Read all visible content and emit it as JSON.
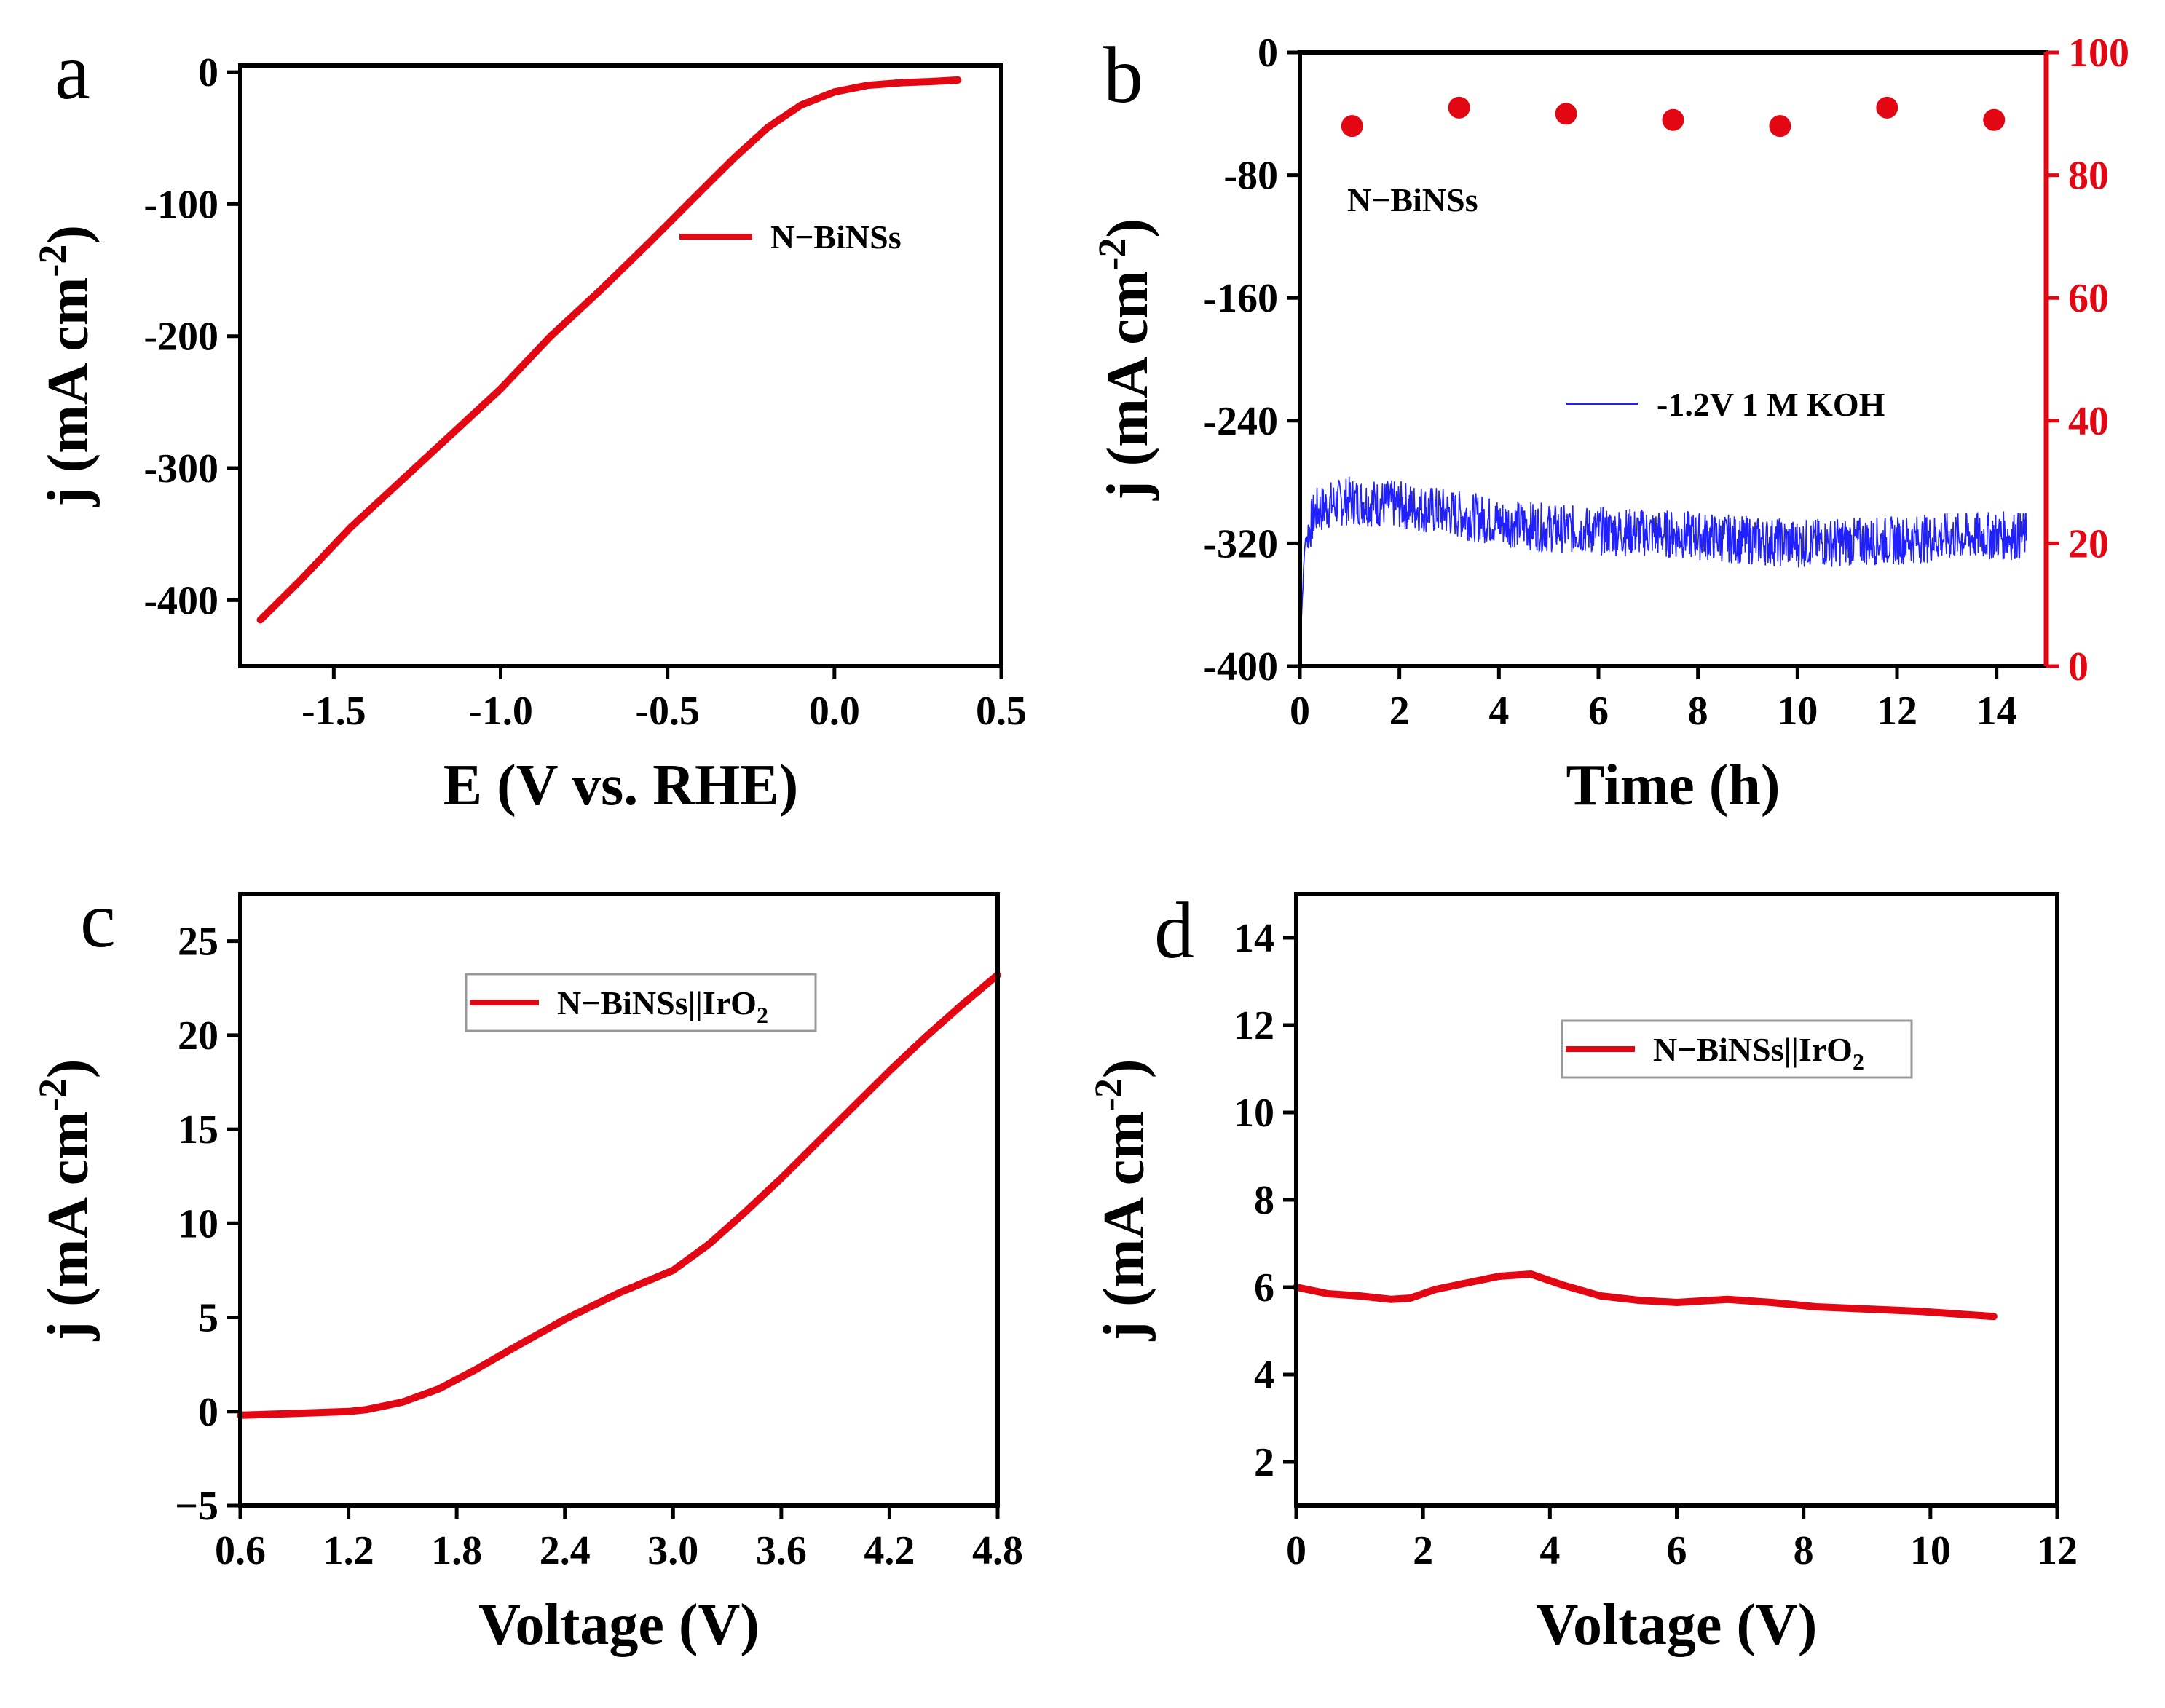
{
  "colors": {
    "red": "#e30613",
    "blue": "#1f1fff",
    "axis": "#000000"
  },
  "chart_data": [
    {
      "id": "a",
      "type": "line",
      "panel_label": "a",
      "xlabel": "E (V vs. RHE)",
      "ylabel": {
        "main": "j (mA cm",
        "sup": "-2",
        "close": ")"
      },
      "xlim": [
        -1.78,
        0.5
      ],
      "ylim": [
        -450,
        5
      ],
      "xticks": [
        -1.5,
        -1.0,
        -0.5,
        0.0,
        0.5
      ],
      "xtick_labels": [
        "-1.5",
        "-1.0",
        "-0.5",
        "0.0",
        "0.5"
      ],
      "yticks": [
        0,
        -100,
        -200,
        -300,
        -400
      ],
      "ytick_labels": [
        "0",
        "-100",
        "-200",
        "-300",
        "-400"
      ],
      "legend": {
        "label": "N−BiNSs",
        "position": "upper-right"
      },
      "series": [
        {
          "name": "N−BiNSs",
          "color": "#e30613",
          "x": [
            -1.72,
            -1.6,
            -1.45,
            -1.3,
            -1.15,
            -1.0,
            -0.85,
            -0.7,
            -0.55,
            -0.4,
            -0.3,
            -0.2,
            -0.1,
            0.0,
            0.1,
            0.2,
            0.3,
            0.37
          ],
          "y": [
            -415,
            -385,
            -345,
            -310,
            -275,
            -240,
            -200,
            -165,
            -128,
            -90,
            -65,
            -42,
            -25,
            -15,
            -10,
            -8,
            -7,
            -6
          ]
        }
      ]
    },
    {
      "id": "b",
      "type": "line",
      "panel_label": "b",
      "xlabel": "Time (h)",
      "ylabel": {
        "main": "j (mA cm",
        "sup": "-2",
        "close": ")"
      },
      "xlim": [
        0,
        15
      ],
      "ylim": [
        -400,
        0
      ],
      "xticks": [
        0,
        2,
        4,
        6,
        8,
        10,
        12,
        14
      ],
      "xtick_labels": [
        "0",
        "2",
        "4",
        "6",
        "8",
        "10",
        "12",
        "14"
      ],
      "yticks": [
        0,
        -80,
        -160,
        -240,
        -320,
        -400
      ],
      "ytick_labels": [
        "0",
        "-80",
        "-160",
        "-240",
        "-320",
        "-400"
      ],
      "y2lim": [
        0,
        100
      ],
      "y2ticks": [
        0,
        20,
        40,
        60,
        80,
        100
      ],
      "y2tick_labels": [
        "0",
        "20",
        "40",
        "60",
        "80",
        "100"
      ],
      "annotation": "N−BiNSs",
      "legend": {
        "label": "-1.2V 1 M KOH",
        "position": "center-right"
      },
      "series": [
        {
          "name": "-1.2V 1 M KOH",
          "color": "#1f1fff",
          "x": [
            0,
            0.1,
            0.3,
            0.6,
            1,
            2,
            3,
            4,
            5,
            6,
            7,
            8,
            9,
            10,
            11,
            12,
            13,
            14,
            14.6
          ],
          "y": [
            -390,
            -320,
            -300,
            -295,
            -292,
            -295,
            -300,
            -306,
            -310,
            -312,
            -313,
            -315,
            -318,
            -320,
            -319,
            -318,
            -316,
            -315,
            -315
          ],
          "noise_amplitude": 16
        },
        {
          "type": "scatter",
          "axis": "right",
          "color": "#e30613",
          "x": [
            1.05,
            3.2,
            5.35,
            7.5,
            9.65,
            11.8,
            13.95
          ],
          "y": [
            88,
            91,
            90,
            89,
            88,
            91,
            89
          ]
        }
      ]
    },
    {
      "id": "c",
      "type": "line",
      "panel_label": "c",
      "xlabel": "Voltage (V)",
      "ylabel": {
        "main": "j (mA cm",
        "sup": "-2",
        "close": ")"
      },
      "xlim": [
        0.6,
        4.8
      ],
      "ylim": [
        -5,
        27.5
      ],
      "xticks": [
        0.6,
        1.2,
        1.8,
        2.4,
        3.0,
        3.6,
        4.2,
        4.8
      ],
      "xtick_labels": [
        "0.6",
        "1.2",
        "1.8",
        "2.4",
        "3.0",
        "3.6",
        "4.2",
        "4.8"
      ],
      "yticks": [
        -5,
        0,
        5,
        10,
        15,
        20,
        25
      ],
      "ytick_labels": [
        "−5",
        "0",
        "5",
        "10",
        "15",
        "20",
        "25"
      ],
      "legend": {
        "label": "N−BiNSs||IrO",
        "sub": "2",
        "position": "upper-center"
      },
      "series": [
        {
          "name": "N−BiNSs||IrO2",
          "color": "#e30613",
          "x": [
            0.6,
            0.9,
            1.2,
            1.3,
            1.5,
            1.7,
            1.9,
            2.1,
            2.4,
            2.7,
            3.0,
            3.2,
            3.4,
            3.6,
            3.8,
            4.0,
            4.2,
            4.4,
            4.6,
            4.8
          ],
          "y": [
            -0.2,
            -0.1,
            0.0,
            0.1,
            0.5,
            1.2,
            2.2,
            3.3,
            4.9,
            6.3,
            7.5,
            8.9,
            10.6,
            12.4,
            14.3,
            16.2,
            18.1,
            19.9,
            21.6,
            23.2
          ]
        }
      ]
    },
    {
      "id": "d",
      "type": "line",
      "panel_label": "d",
      "xlabel": "Voltage (V)",
      "ylabel": {
        "main": "j (mA cm",
        "sup": "-2",
        "close": ")"
      },
      "xlim": [
        0,
        12
      ],
      "ylim": [
        1,
        15
      ],
      "xticks": [
        0,
        2,
        4,
        6,
        8,
        10,
        12
      ],
      "xtick_labels": [
        "0",
        "2",
        "4",
        "6",
        "8",
        "10",
        "12"
      ],
      "yticks": [
        2,
        4,
        6,
        8,
        10,
        12,
        14
      ],
      "ytick_labels": [
        "2",
        "4",
        "6",
        "8",
        "10",
        "12",
        "14"
      ],
      "legend": {
        "label": "N−BiNSs||IrO",
        "sub": "2",
        "position": "upper-center"
      },
      "series": [
        {
          "name": "N−BiNSs||IrO2",
          "color": "#e30613",
          "x": [
            0,
            0.5,
            1.0,
            1.5,
            1.8,
            2.2,
            2.7,
            3.2,
            3.7,
            4.2,
            4.8,
            5.4,
            6.0,
            6.8,
            7.5,
            8.2,
            9.0,
            9.8,
            10.5,
            11.0
          ],
          "y": [
            6.0,
            5.85,
            5.8,
            5.72,
            5.75,
            5.95,
            6.1,
            6.25,
            6.3,
            6.05,
            5.8,
            5.7,
            5.65,
            5.72,
            5.65,
            5.55,
            5.5,
            5.45,
            5.38,
            5.33
          ]
        }
      ]
    }
  ]
}
